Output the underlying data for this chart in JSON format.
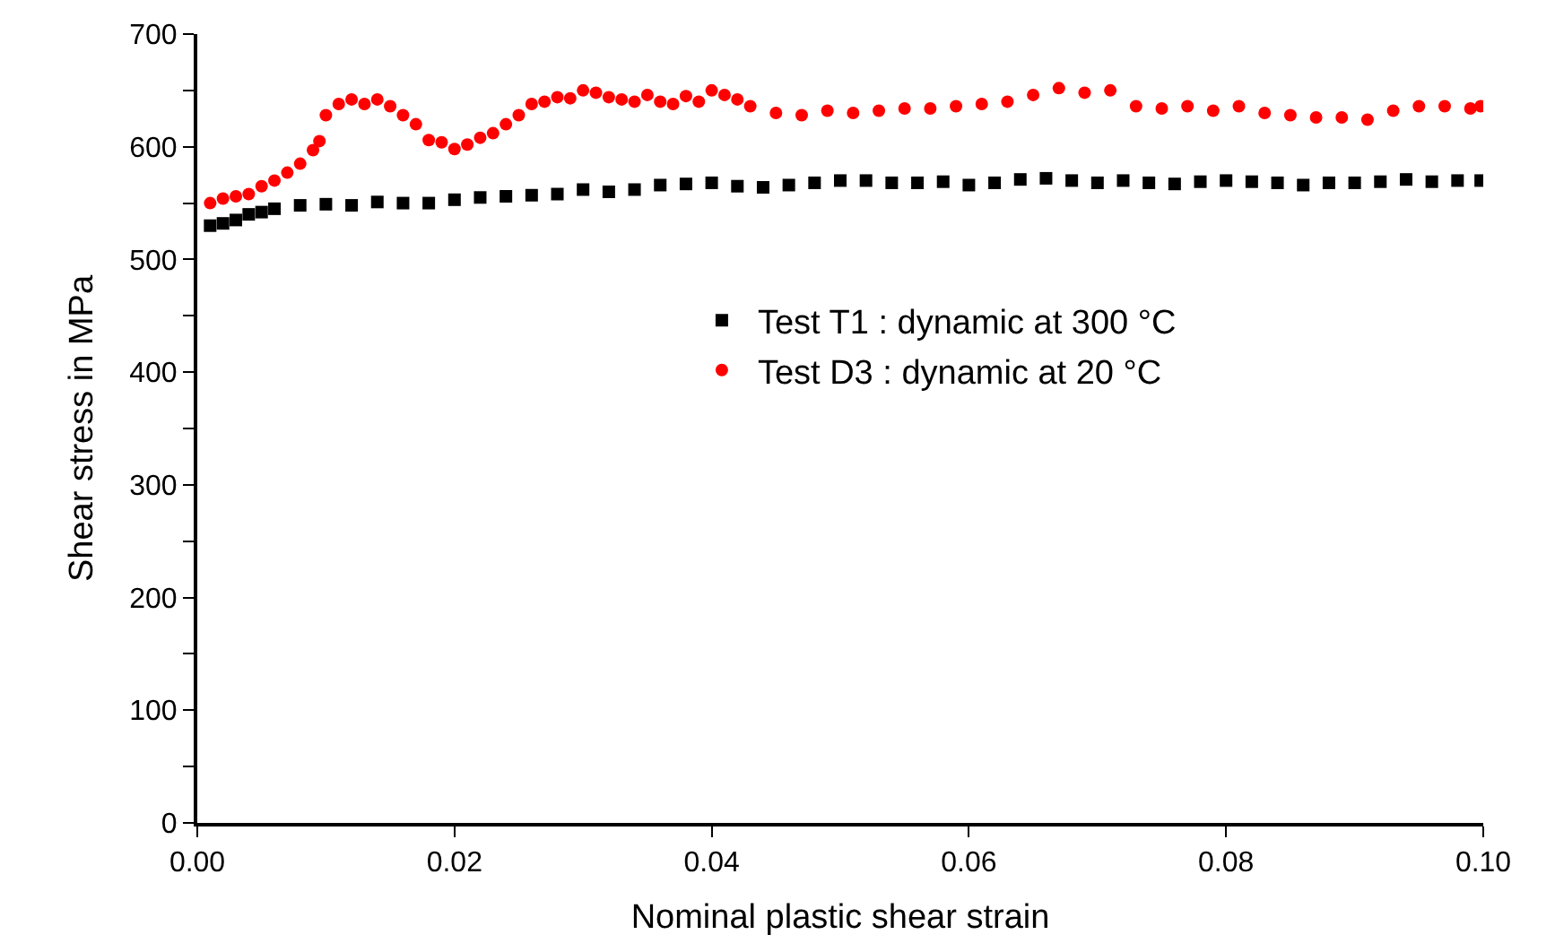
{
  "chart_data": {
    "type": "scatter",
    "xlabel": "Nominal plastic shear strain",
    "ylabel": "Shear stress in MPa",
    "xlim": [
      0.0,
      0.1
    ],
    "xticks": [
      {
        "value": 0,
        "label": "0.00"
      },
      {
        "value": 0.02,
        "label": "0.02"
      },
      {
        "value": 0.04,
        "label": "0.04"
      },
      {
        "value": 0.06,
        "label": "0.06"
      },
      {
        "value": 0.08,
        "label": "0.08"
      },
      {
        "value": 0.1,
        "label": "0.10"
      }
    ],
    "ylim": [
      0,
      700
    ],
    "yticks": [
      0,
      {
        "value": 50,
        "label": null
      },
      100,
      {
        "value": 150,
        "label": null
      },
      200,
      {
        "value": 250,
        "label": null
      },
      300,
      {
        "value": 350,
        "label": null
      },
      400,
      {
        "value": 450,
        "label": null
      },
      500,
      {
        "value": 550,
        "label": null
      },
      600,
      {
        "value": 650,
        "label": null
      },
      700
    ],
    "legend": "center",
    "series": [
      {
        "name": "Test T1 : dynamic at 300 °C",
        "color": "#000000",
        "marker": "square",
        "x": [
          0.001,
          0.002,
          0.003,
          0.004,
          0.005,
          0.006,
          0.008,
          0.01,
          0.012,
          0.014,
          0.016,
          0.018,
          0.02,
          0.022,
          0.024,
          0.026,
          0.028,
          0.03,
          0.032,
          0.034,
          0.036,
          0.038,
          0.04,
          0.042,
          0.044,
          0.046,
          0.048,
          0.05,
          0.052,
          0.054,
          0.056,
          0.058,
          0.06,
          0.062,
          0.064,
          0.066,
          0.068,
          0.07,
          0.072,
          0.074,
          0.076,
          0.078,
          0.08,
          0.082,
          0.084,
          0.086,
          0.088,
          0.09,
          0.092,
          0.094,
          0.096,
          0.098,
          0.0998
        ],
        "values": [
          530,
          532,
          535,
          540,
          542,
          545,
          548,
          549,
          548,
          551,
          550,
          550,
          553,
          555,
          556,
          557,
          558,
          562,
          560,
          562,
          566,
          567,
          568,
          565,
          564,
          566,
          568,
          570,
          570,
          568,
          568,
          569,
          566,
          568,
          571,
          572,
          570,
          568,
          570,
          568,
          567,
          569,
          570,
          569,
          568,
          566,
          568,
          568,
          569,
          571,
          569,
          570,
          570
        ]
      },
      {
        "name": "Test D3 : dynamic at 20 °C",
        "color": "#ff0000",
        "marker": "circle",
        "x": [
          0.001,
          0.002,
          0.003,
          0.004,
          0.005,
          0.006,
          0.007,
          0.008,
          0.009,
          0.0095,
          0.01,
          0.011,
          0.012,
          0.013,
          0.014,
          0.015,
          0.016,
          0.017,
          0.018,
          0.019,
          0.02,
          0.021,
          0.022,
          0.023,
          0.024,
          0.025,
          0.026,
          0.027,
          0.028,
          0.029,
          0.03,
          0.031,
          0.032,
          0.033,
          0.034,
          0.035,
          0.036,
          0.037,
          0.038,
          0.039,
          0.04,
          0.041,
          0.042,
          0.043,
          0.045,
          0.047,
          0.049,
          0.051,
          0.053,
          0.055,
          0.057,
          0.059,
          0.061,
          0.063,
          0.065,
          0.067,
          0.069,
          0.071,
          0.073,
          0.075,
          0.077,
          0.079,
          0.081,
          0.083,
          0.085,
          0.087,
          0.089,
          0.091,
          0.093,
          0.095,
          0.097,
          0.099,
          0.0998
        ],
        "values": [
          550,
          554,
          556,
          558,
          565,
          570,
          577,
          585,
          597,
          605,
          628,
          638,
          642,
          638,
          642,
          636,
          628,
          620,
          606,
          604,
          598,
          602,
          608,
          612,
          620,
          628,
          638,
          640,
          644,
          643,
          650,
          648,
          644,
          642,
          640,
          646,
          640,
          638,
          645,
          640,
          650,
          646,
          642,
          636,
          630,
          628,
          632,
          630,
          632,
          634,
          634,
          636,
          638,
          640,
          646,
          652,
          648,
          650,
          636,
          634,
          636,
          632,
          636,
          630,
          628,
          626,
          626,
          624,
          632,
          636,
          636,
          634,
          636
        ]
      }
    ]
  }
}
